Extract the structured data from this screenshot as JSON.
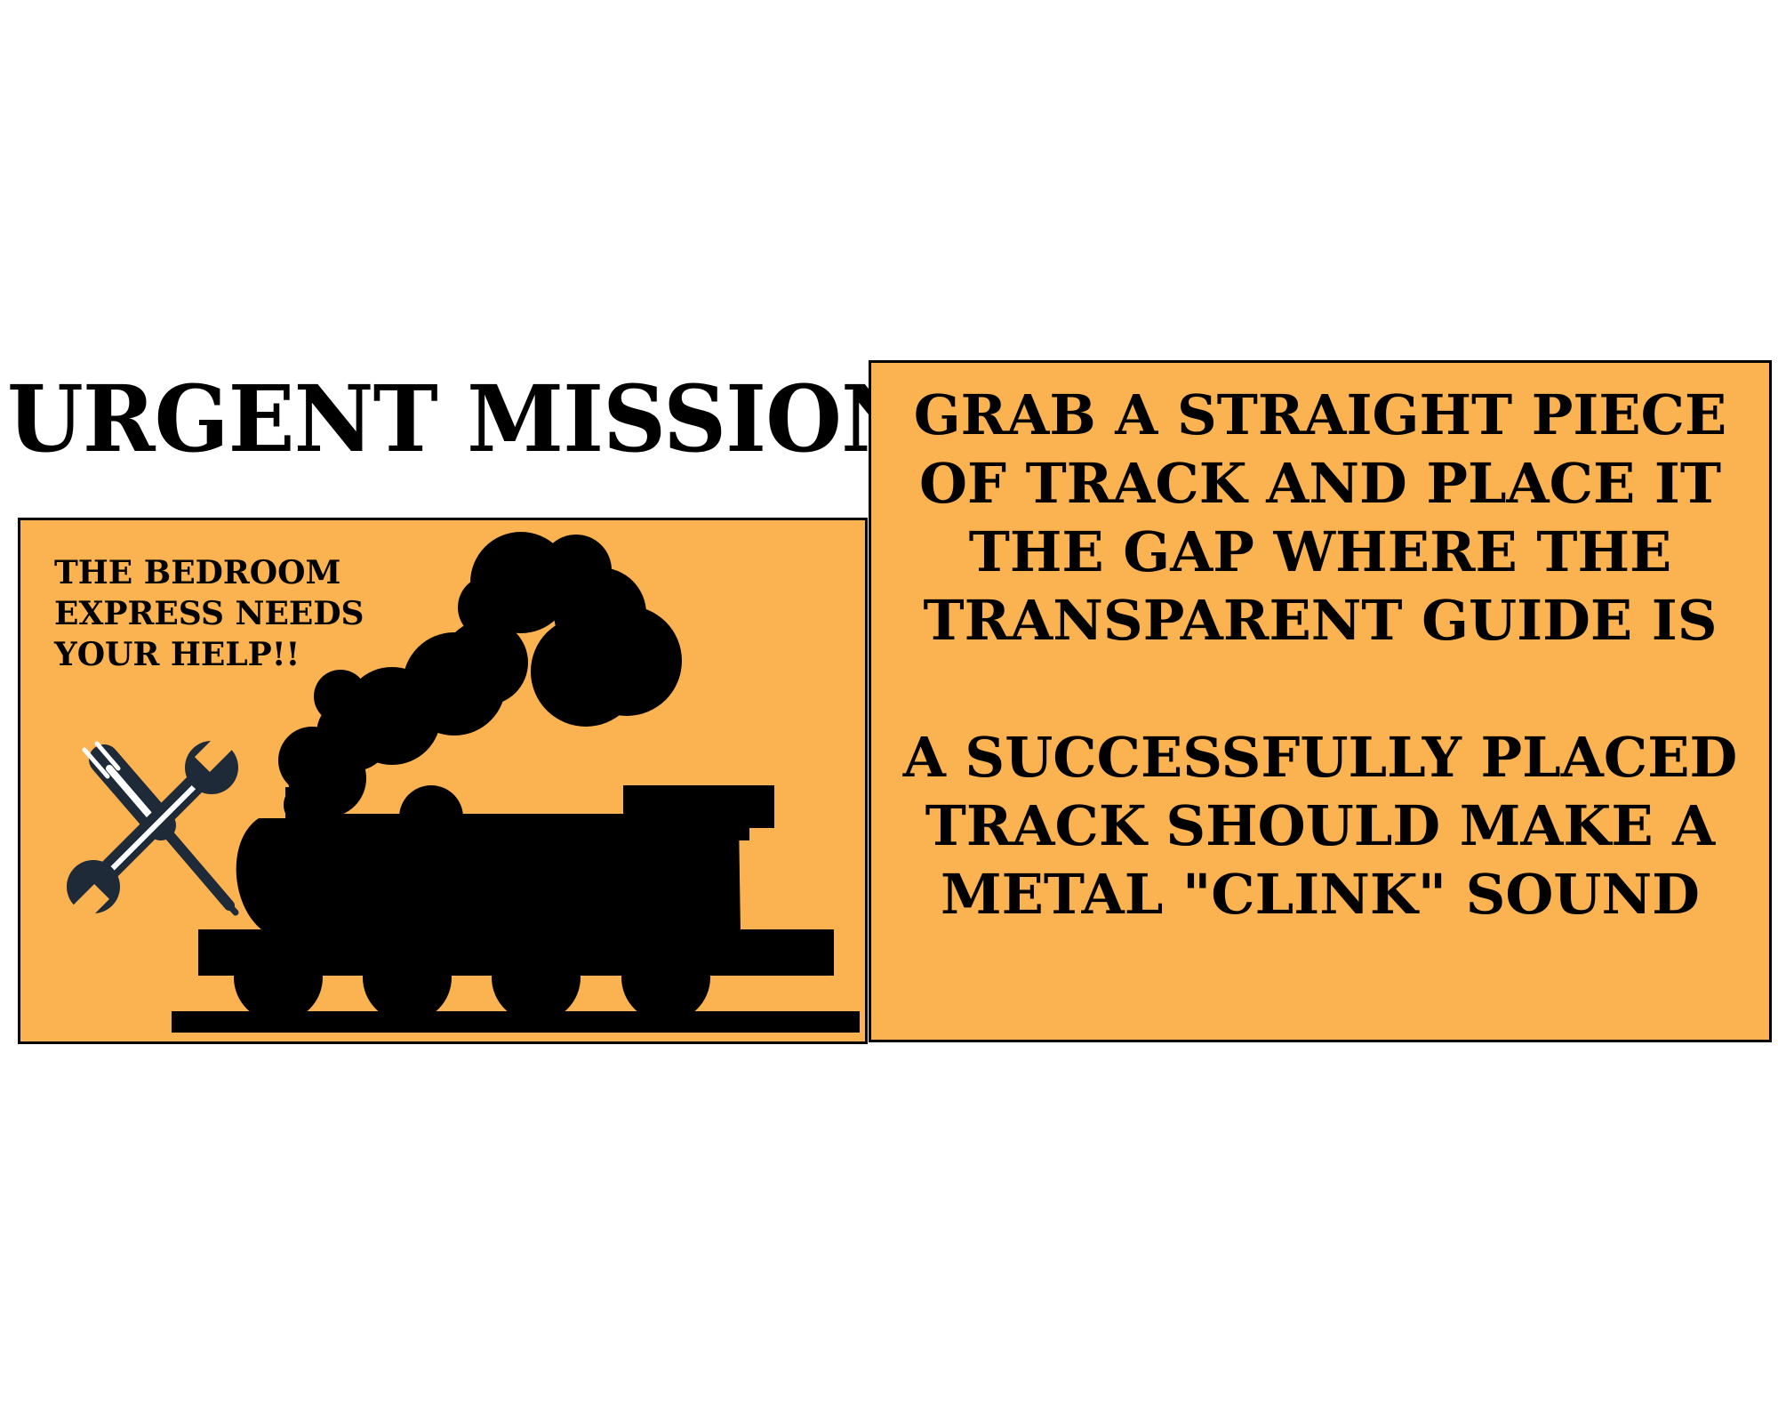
{
  "page": {
    "heading": "URGENT MISSION!"
  },
  "left_panel": {
    "help_text": "THE BEDROOM\nEXPRESS NEEDS\nYOUR HELP!!",
    "icons": [
      "crossed-tools-icon",
      "steam-locomotive-icon"
    ]
  },
  "right_panel": {
    "instruction_1": "GRAB A STRAIGHT PIECE\nOF TRACK AND PLACE IT\nTHE GAP WHERE THE\nTRANSPARENT GUIDE IS",
    "instruction_2": "A SUCCESSFULLY PLACED\nTRACK SHOULD MAKE A\nMETAL \"CLINK\" SOUND"
  },
  "colors": {
    "panel_background": "#fbb251",
    "border": "#000000",
    "text": "#000000",
    "tool_color": "#1e2a38"
  }
}
